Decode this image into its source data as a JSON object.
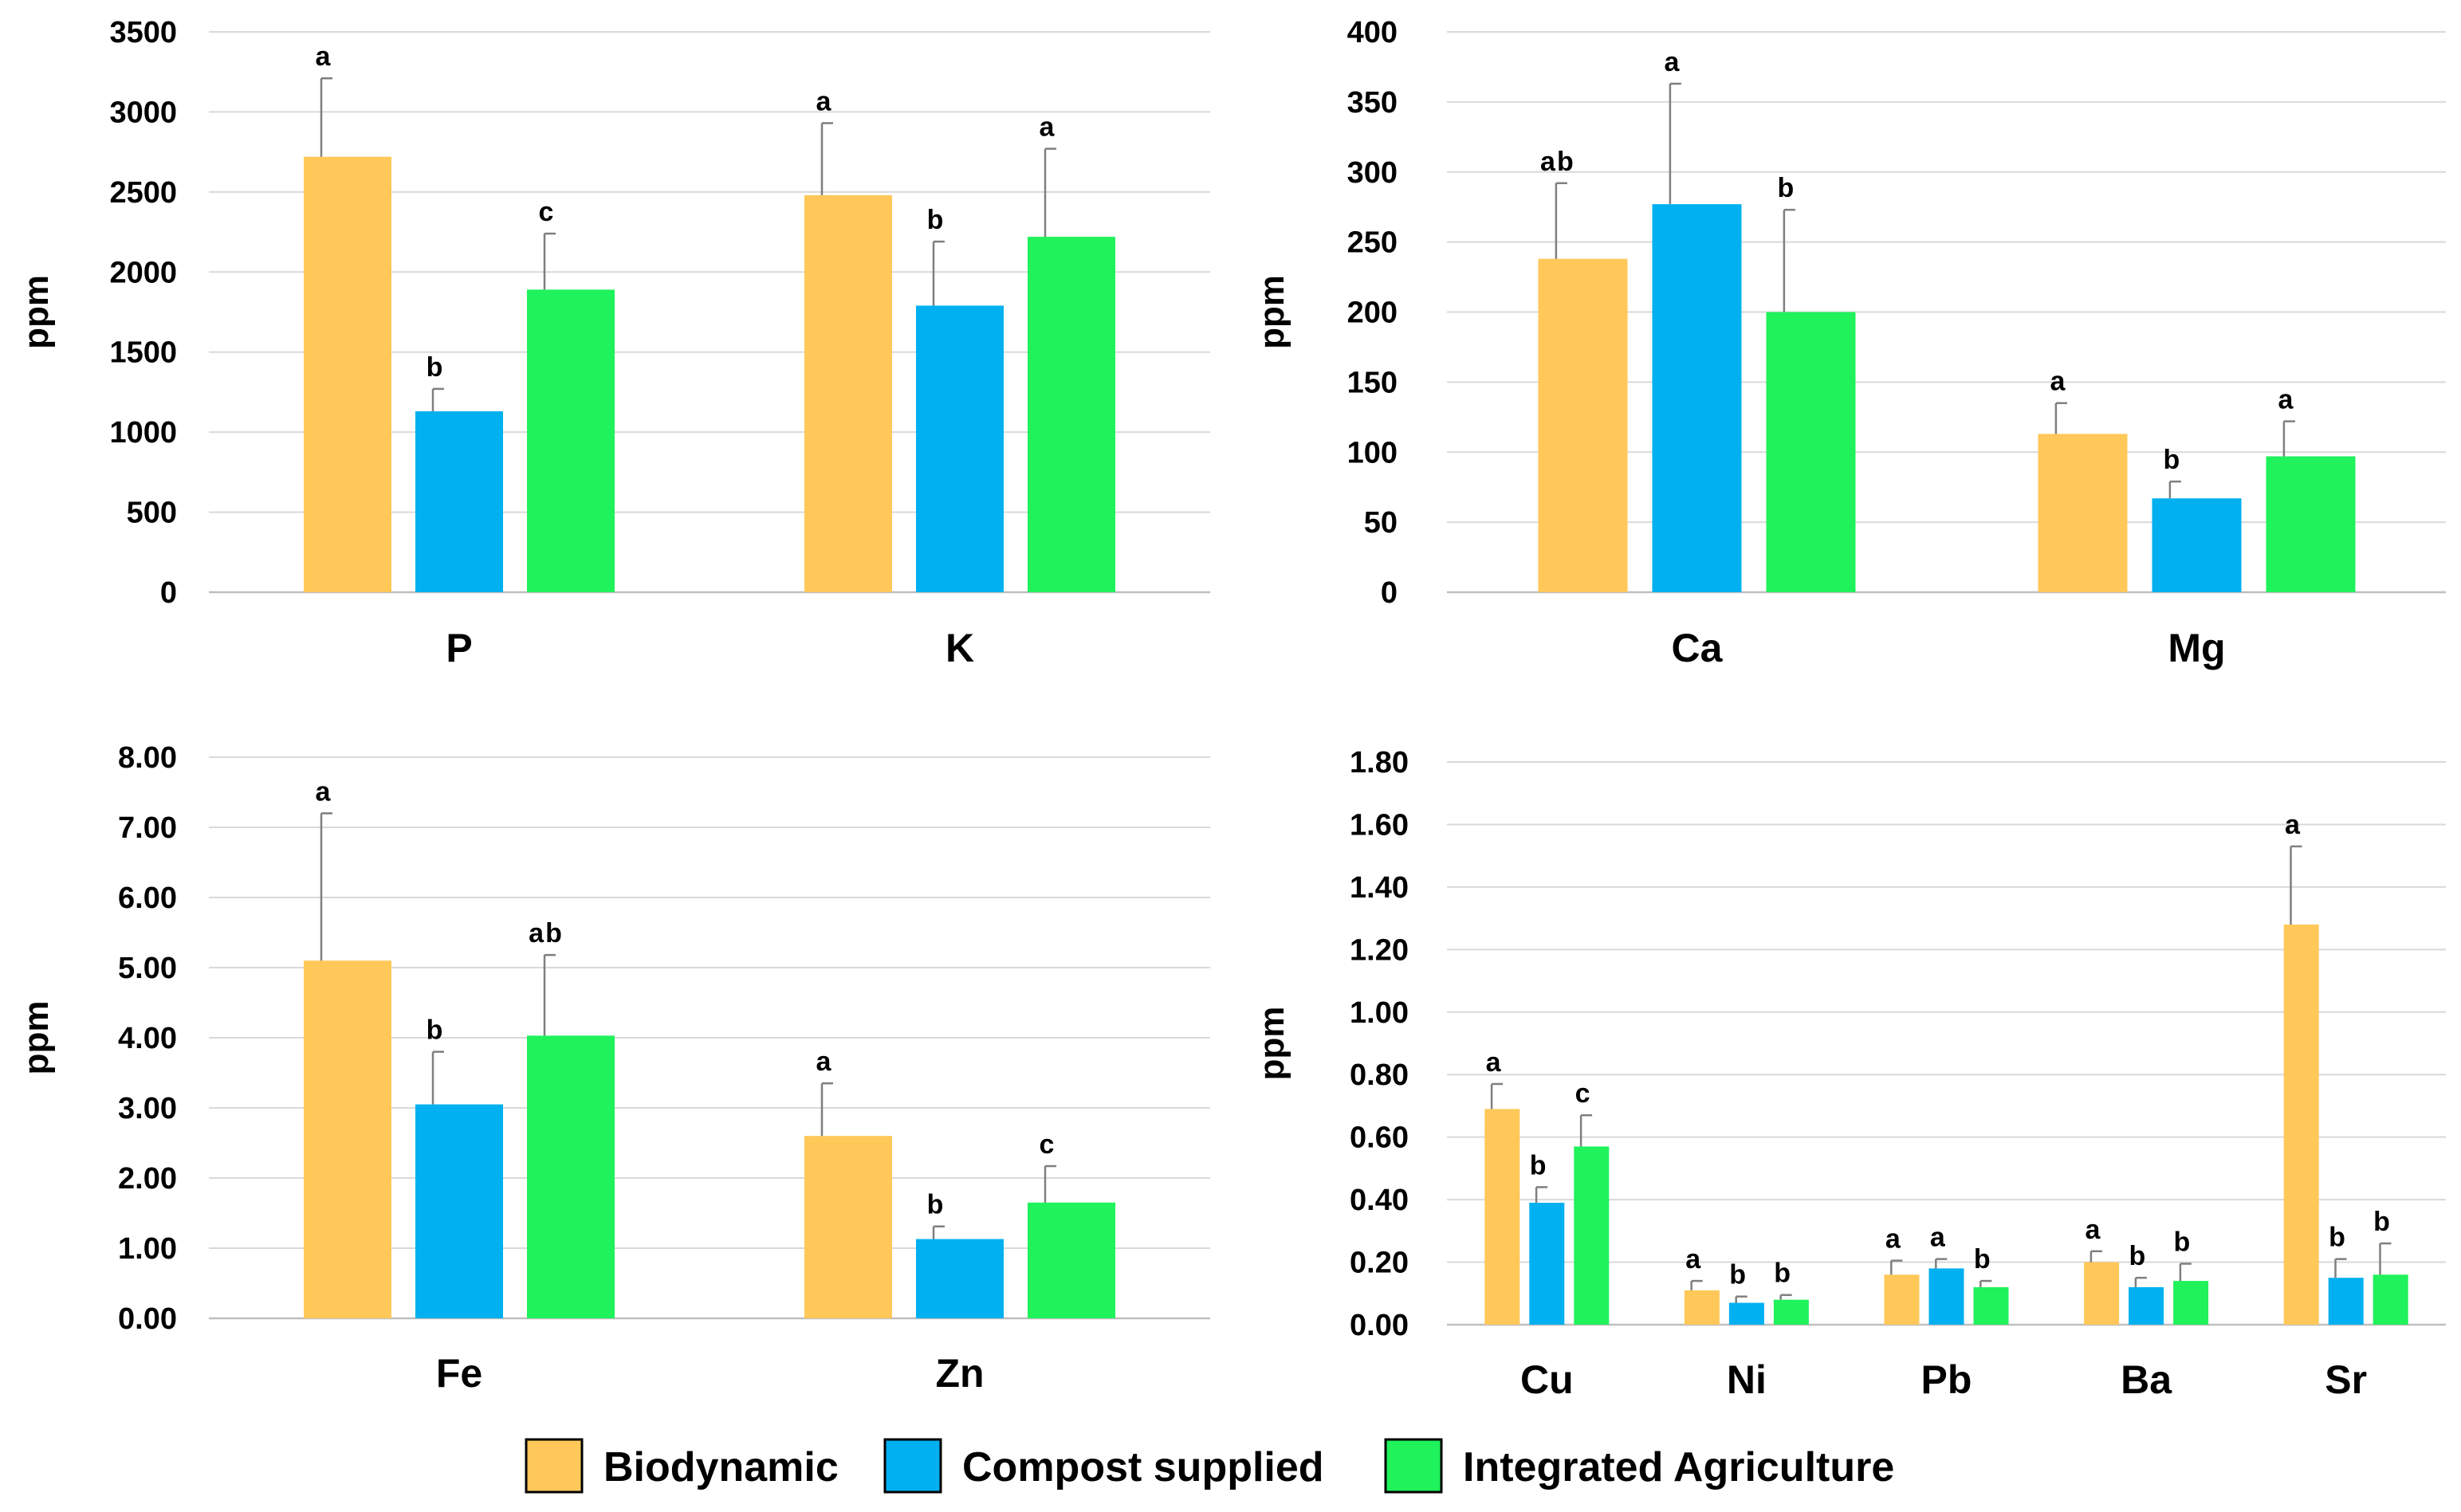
{
  "figure": {
    "legend": [
      {
        "name": "Biodynamic",
        "color": "#FFC859"
      },
      {
        "name": "Compost supplied",
        "color": "#00B0F0"
      },
      {
        "name": "Integrated Agriculture",
        "color": "#1FF25A"
      }
    ]
  },
  "chart_data": [
    {
      "type": "bar",
      "title": "",
      "xlabel": "",
      "ylabel": "ppm",
      "ylim": [
        0,
        3500
      ],
      "yticks": [
        "0",
        "500",
        "1000",
        "1500",
        "2000",
        "2500",
        "3000",
        "3500"
      ],
      "grid": true,
      "categories": [
        "P",
        "K"
      ],
      "series": [
        {
          "name": "Biodynamic",
          "values": [
            2720,
            2480
          ],
          "errors": [
            490,
            450
          ],
          "letters": [
            "a",
            "a"
          ]
        },
        {
          "name": "Compost supplied",
          "values": [
            1130,
            1790
          ],
          "errors": [
            140,
            400
          ],
          "letters": [
            "b",
            "b"
          ]
        },
        {
          "name": "Integrated Agriculture",
          "values": [
            1890,
            2220
          ],
          "errors": [
            350,
            550
          ],
          "letters": [
            "c",
            "a"
          ]
        }
      ]
    },
    {
      "type": "bar",
      "title": "",
      "xlabel": "",
      "ylabel": "ppm",
      "ylim": [
        0,
        400
      ],
      "yticks": [
        "0",
        "50",
        "100",
        "150",
        "200",
        "250",
        "300",
        "350",
        "400"
      ],
      "grid": true,
      "categories": [
        "Ca",
        "Mg"
      ],
      "series": [
        {
          "name": "Biodynamic",
          "values": [
            238,
            113
          ],
          "errors": [
            54,
            22
          ],
          "letters": [
            "ab",
            "a"
          ]
        },
        {
          "name": "Compost supplied",
          "values": [
            277,
            67
          ],
          "errors": [
            86,
            12
          ],
          "letters": [
            "a",
            "b"
          ]
        },
        {
          "name": "Integrated Agriculture",
          "values": [
            200,
            97
          ],
          "errors": [
            73,
            25
          ],
          "letters": [
            "b",
            "a"
          ]
        }
      ]
    },
    {
      "type": "bar",
      "title": "",
      "xlabel": "",
      "ylabel": "ppm",
      "ylim": [
        0,
        8
      ],
      "yticks": [
        "0.00",
        "1.00",
        "2.00",
        "3.00",
        "4.00",
        "5.00",
        "6.00",
        "7.00",
        "8.00"
      ],
      "grid": true,
      "categories": [
        "Fe",
        "Zn"
      ],
      "series": [
        {
          "name": "Biodynamic",
          "values": [
            5.1,
            2.6
          ],
          "errors": [
            2.1,
            0.75
          ],
          "letters": [
            "a",
            "a"
          ]
        },
        {
          "name": "Compost supplied",
          "values": [
            3.05,
            1.13
          ],
          "errors": [
            0.75,
            0.18
          ],
          "letters": [
            "b",
            "b"
          ]
        },
        {
          "name": "Integrated Agriculture",
          "values": [
            4.03,
            1.65
          ],
          "errors": [
            1.15,
            0.52
          ],
          "letters": [
            "ab",
            "c"
          ]
        }
      ]
    },
    {
      "type": "bar",
      "title": "",
      "xlabel": "",
      "ylabel": "ppm",
      "ylim": [
        0,
        1.8
      ],
      "yticks": [
        "0.00",
        "0.20",
        "0.40",
        "0.60",
        "0.80",
        "1.00",
        "1.20",
        "1.40",
        "1.60",
        "1.80"
      ],
      "grid": true,
      "categories": [
        "Cu",
        "Ni",
        "Pb",
        "Ba",
        "Sr"
      ],
      "series": [
        {
          "name": "Biodynamic",
          "values": [
            0.69,
            0.11,
            0.16,
            0.2,
            1.28
          ],
          "errors": [
            0.08,
            0.03,
            0.045,
            0.035,
            0.25
          ],
          "letters": [
            "a",
            "a",
            "a",
            "a",
            "a"
          ]
        },
        {
          "name": "Compost supplied",
          "values": [
            0.39,
            0.07,
            0.18,
            0.12,
            0.15
          ],
          "errors": [
            0.05,
            0.02,
            0.03,
            0.03,
            0.06
          ],
          "letters": [
            "b",
            "b",
            "a",
            "b",
            "b"
          ]
        },
        {
          "name": "Integrated Agriculture",
          "values": [
            0.57,
            0.08,
            0.12,
            0.14,
            0.16
          ],
          "errors": [
            0.1,
            0.015,
            0.02,
            0.055,
            0.1
          ],
          "letters": [
            "c",
            "b",
            "b",
            "b",
            "b"
          ]
        }
      ]
    }
  ]
}
